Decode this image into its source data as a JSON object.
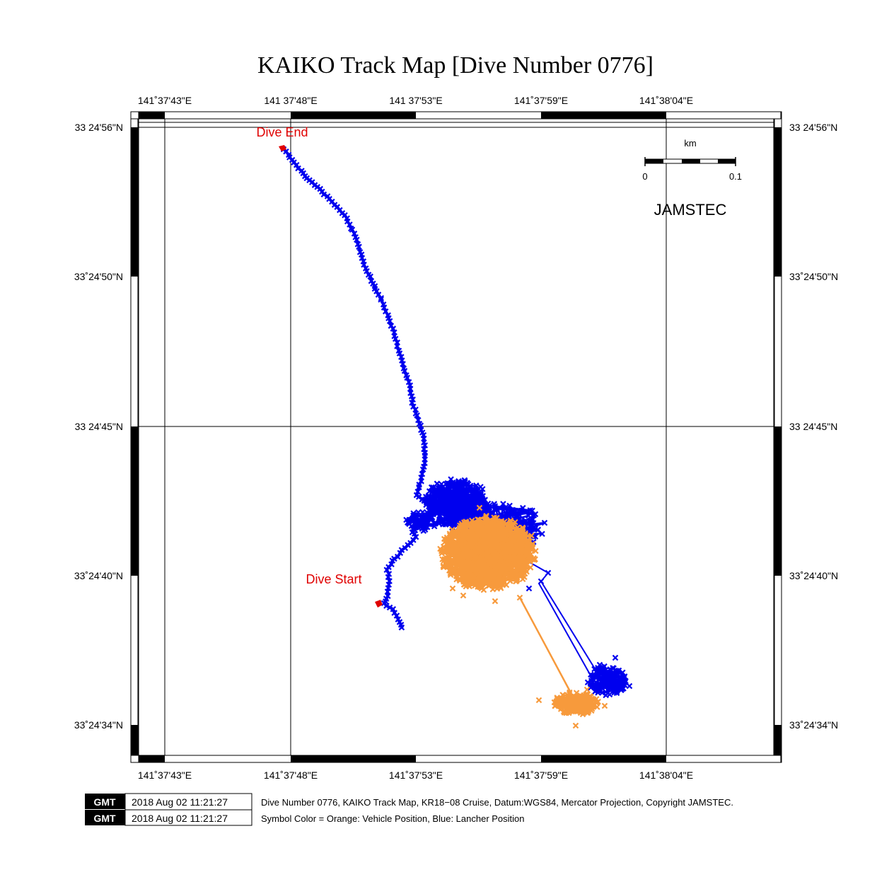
{
  "title": "KAIKO Track Map [Dive Number 0776]",
  "colors": {
    "vehicle": "#f79a3c",
    "launcher": "#0000ee",
    "marker": "#e00000"
  },
  "top_ticks": [
    "141˚37'43\"E",
    "141 37'48\"E",
    "141 37'53\"E",
    "141˚37'59\"E",
    "141˚38'04\"E"
  ],
  "bottom_ticks": [
    "141˚37'43\"E",
    "141˚37'48\"E",
    "141˚37'53\"E",
    "141˚37'59\"E",
    "141˚38'04\"E"
  ],
  "left_ticks": [
    "33 24'56\"N",
    "33˚24'50\"N",
    "33 24'45\"N",
    "33˚24'40\"N",
    "33˚24'34\"N"
  ],
  "right_ticks": [
    "33 24'56\"N",
    "33˚24'50\"N",
    "33 24'45\"N",
    "33˚24'40\"N",
    "33˚24'34\"N"
  ],
  "labels": {
    "dive_end": "Dive End",
    "dive_start": "Dive Start",
    "jamstec": "JAMSTEC"
  },
  "scale_bar": {
    "unit": "km",
    "min_label": "0",
    "max_label": "0.1"
  },
  "footer": {
    "gmt_logo": "GMT",
    "timestamp_1": "2018 Aug 02 11:21:27",
    "timestamp_2": "2018 Aug 02 11:21:27",
    "caption_1": "Dive Number 0776, KAIKO Track Map, KR18−08 Cruise, Datum:WGS84, Mercator Projection, Copyright JAMSTEC.",
    "caption_2": "Symbol Color = Orange: Vehicle Position, Blue: Lancher Position"
  }
}
